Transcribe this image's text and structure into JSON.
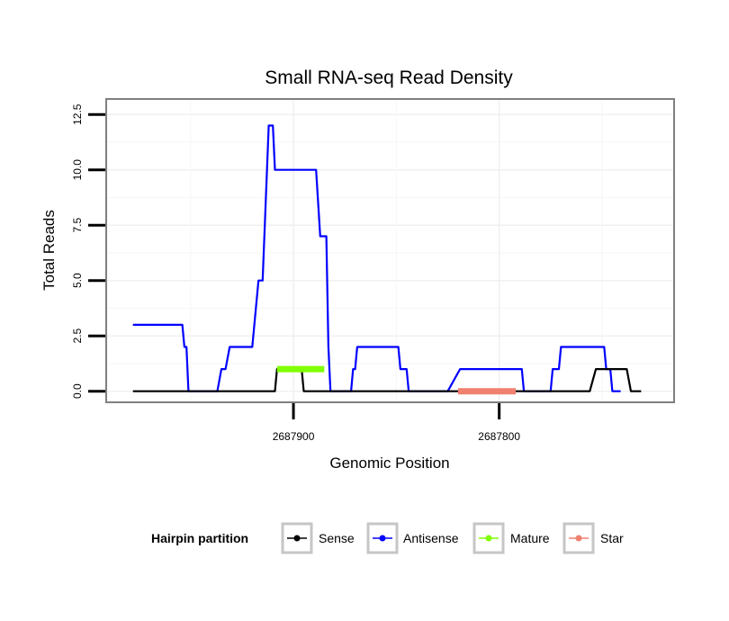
{
  "chart_data": {
    "type": "line",
    "title": "Small RNA-seq Read Density",
    "xlabel": "Genomic Position",
    "ylabel": "Total Reads",
    "x_reversed": true,
    "xlim": [
      2687991,
      2687715
    ],
    "ylim": [
      -0.5,
      13.2
    ],
    "x_ticks": [
      2687900,
      2687800
    ],
    "x_tick_labels": [
      "2687900",
      "2687800"
    ],
    "y_ticks": [
      0,
      2.5,
      5,
      7.5,
      10,
      12.5
    ],
    "y_tick_labels": [
      "0.0",
      "2.5",
      "5.0",
      "7.5",
      "10.0",
      "12.5"
    ],
    "grid": true,
    "legend_title": "Hairpin partition",
    "legend_position": "bottom",
    "series": [
      {
        "name": "Antisense",
        "color": "#0000ff",
        "x": [
          2687978,
          2687955,
          2687954,
          2687953,
          2687952,
          2687951,
          2687950,
          2687938,
          2687937,
          2687935,
          2687934,
          2687933,
          2687931,
          2687930,
          2687929,
          2687921,
          2687920,
          2687917,
          2687916,
          2687915,
          2687912,
          2687911,
          2687910,
          2687909,
          2687908,
          2687890,
          2687889,
          2687887,
          2687886,
          2687884,
          2687883,
          2687882,
          2687881,
          2687880,
          2687876,
          2687875,
          2687874,
          2687873,
          2687872,
          2687871,
          2687870,
          2687869,
          2687851,
          2687850,
          2687849,
          2687848,
          2687846,
          2687845,
          2687844,
          2687826,
          2687825,
          2687819,
          2687818,
          2687817,
          2687816,
          2687815,
          2687814,
          2687790,
          2687789,
          2687788,
          2687787,
          2687776,
          2687775,
          2687774,
          2687773,
          2687771,
          2687770,
          2687769,
          2687768,
          2687749,
          2687748,
          2687746,
          2687745,
          2687744,
          2687742,
          2687741
        ],
        "y": [
          3,
          3,
          3,
          2,
          2,
          0,
          0,
          0,
          0,
          1,
          1,
          1,
          2,
          2,
          2,
          2,
          2,
          5,
          5,
          5,
          12,
          12,
          12,
          10,
          10,
          10,
          10,
          7,
          7,
          7,
          2,
          0,
          0,
          0,
          0,
          0,
          0,
          0,
          0,
          1,
          1,
          2,
          2,
          2,
          2,
          1,
          1,
          1,
          0,
          0,
          0,
          1,
          1,
          1,
          1,
          1,
          1,
          1,
          1,
          0,
          0,
          0,
          0,
          1,
          1,
          1,
          2,
          2,
          2,
          2,
          1,
          1,
          0,
          0,
          0,
          0
        ]
      },
      {
        "name": "Sense",
        "color": "#000000",
        "x": [
          2687978,
          2687914,
          2687909,
          2687908,
          2687896,
          2687895,
          2687892,
          2687756,
          2687753,
          2687746,
          2687745,
          2687738,
          2687736,
          2687731
        ],
        "y": [
          0,
          0,
          0,
          1,
          1,
          0,
          0,
          0,
          1,
          1,
          1,
          1,
          0,
          0
        ]
      },
      {
        "name": "Mature",
        "color": "#7fff00",
        "x": [
          2687908,
          2687885
        ],
        "y": [
          1,
          1
        ]
      },
      {
        "name": "Star",
        "color": "#f08070",
        "x": [
          2687820,
          2687792
        ],
        "y": [
          0,
          0
        ]
      }
    ]
  }
}
